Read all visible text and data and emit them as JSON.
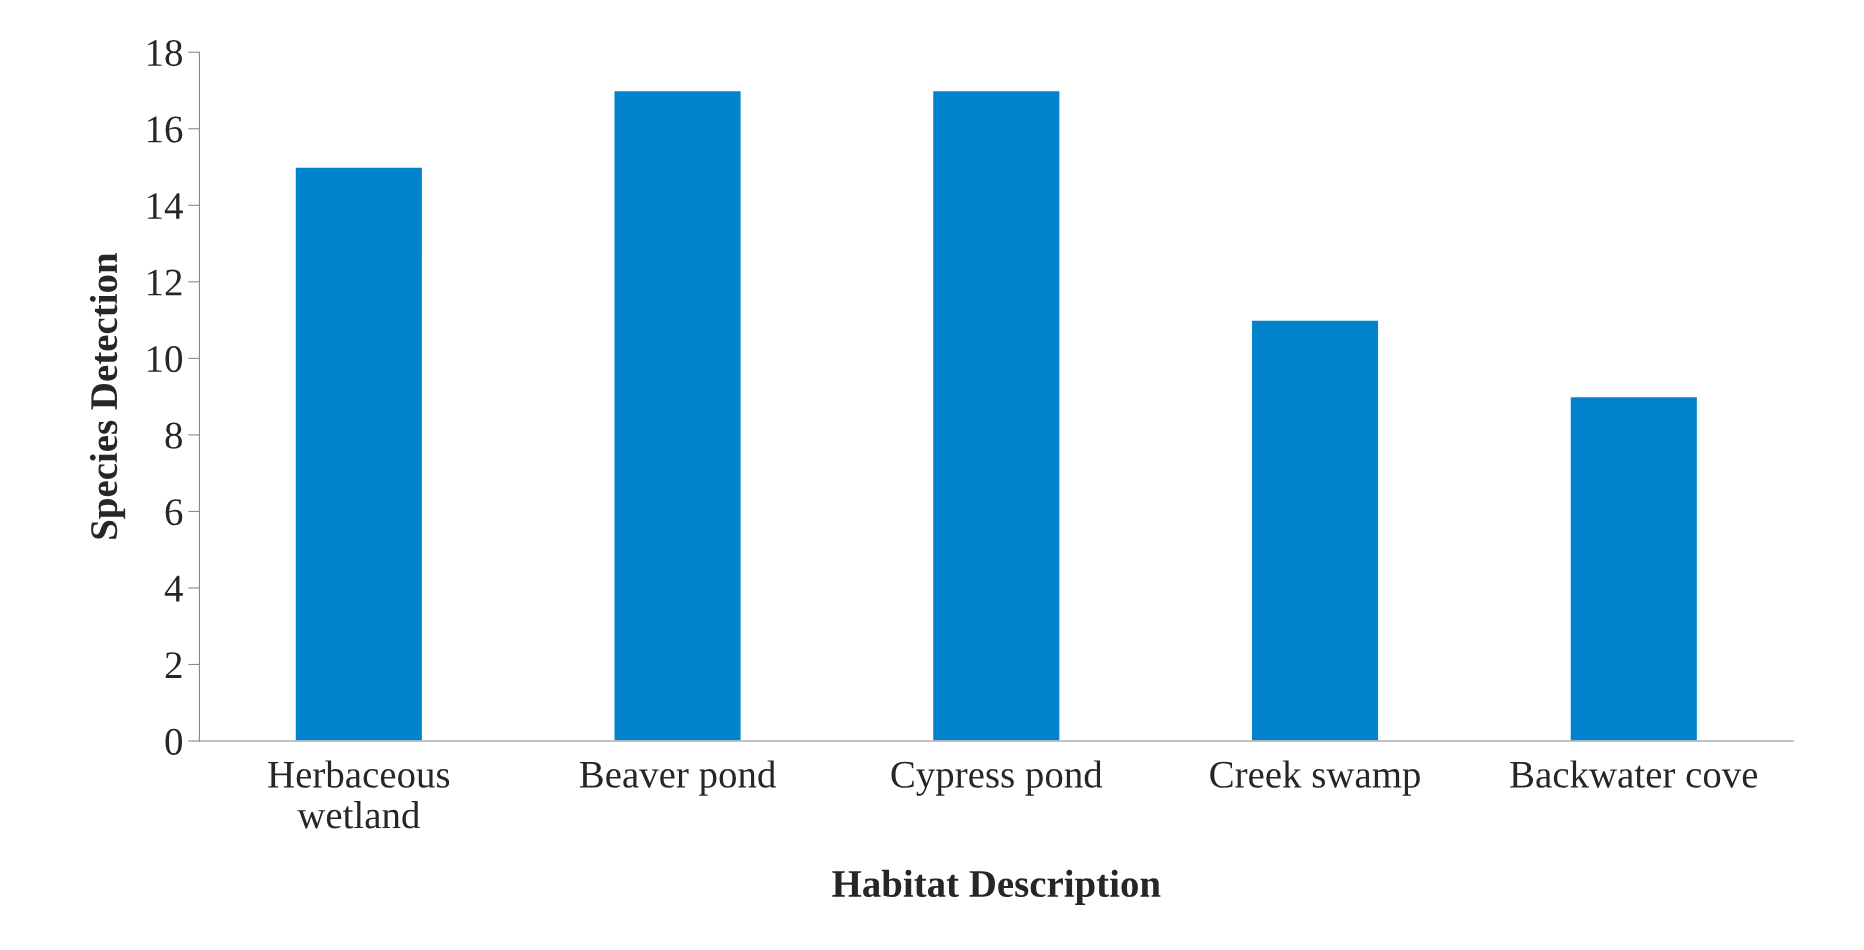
{
  "chart_data": {
    "type": "bar",
    "xlabel": "Habitat Description",
    "ylabel": "Species Detection",
    "categories": [
      "Herbaceous\nwetland",
      "Beaver pond",
      "Cypress pond",
      "Creek swamp",
      "Backwater cove"
    ],
    "values": [
      15,
      17,
      17,
      11,
      9
    ],
    "color": "#0083cc",
    "ylim": [
      0,
      18
    ],
    "yticks": [
      0,
      2,
      4,
      6,
      8,
      10,
      12,
      14,
      16,
      18
    ],
    "grid": false
  }
}
